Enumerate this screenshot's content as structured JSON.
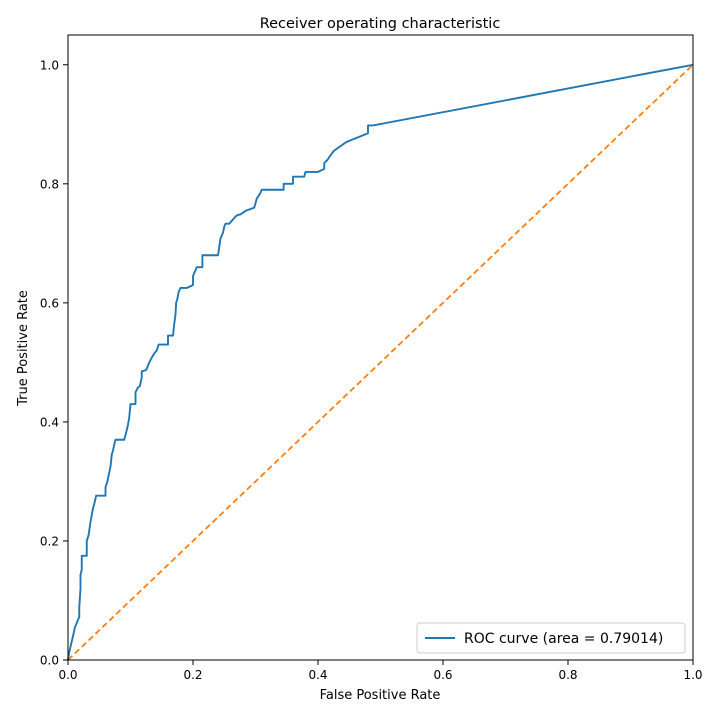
{
  "chart_data": {
    "type": "line",
    "title": "Receiver operating characteristic",
    "xlabel": "False Positive Rate",
    "ylabel": "True Positive Rate",
    "xlim": [
      0.0,
      1.0
    ],
    "ylim": [
      0.0,
      1.05
    ],
    "x_ticks": [
      0.0,
      0.2,
      0.4,
      0.6,
      0.8,
      1.0
    ],
    "y_ticks": [
      0.0,
      0.2,
      0.4,
      0.6,
      0.8,
      1.0
    ],
    "x_tick_labels": [
      "0.0",
      "0.2",
      "0.4",
      "0.6",
      "0.8",
      "1.0"
    ],
    "y_tick_labels": [
      "0.0",
      "0.2",
      "0.4",
      "0.6",
      "0.8",
      "1.0"
    ],
    "grid": false,
    "legend_position": "lower-right",
    "series": [
      {
        "name": "ROC curve (area = 0.79014)",
        "color": "#1f77b4",
        "style": "solid",
        "x": [
          0.0,
          0.002,
          0.005,
          0.008,
          0.011,
          0.014,
          0.016,
          0.018,
          0.018,
          0.02,
          0.02,
          0.022,
          0.022,
          0.03,
          0.03,
          0.033,
          0.036,
          0.04,
          0.042,
          0.045,
          0.047,
          0.05,
          0.06,
          0.06,
          0.063,
          0.065,
          0.068,
          0.07,
          0.072,
          0.074,
          0.076,
          0.076,
          0.09,
          0.093,
          0.096,
          0.098,
          0.1,
          0.1,
          0.108,
          0.108,
          0.112,
          0.115,
          0.118,
          0.118,
          0.125,
          0.13,
          0.134,
          0.138,
          0.142,
          0.145,
          0.145,
          0.16,
          0.16,
          0.168,
          0.17,
          0.172,
          0.173,
          0.175,
          0.177,
          0.18,
          0.19,
          0.2,
          0.2,
          0.206,
          0.208,
          0.215,
          0.215,
          0.24,
          0.244,
          0.248,
          0.25,
          0.252,
          0.255,
          0.258,
          0.268,
          0.272,
          0.275,
          0.285,
          0.285,
          0.298,
          0.302,
          0.305,
          0.308,
          0.31,
          0.345,
          0.345,
          0.36,
          0.36,
          0.378,
          0.38,
          0.385,
          0.4,
          0.41,
          0.41,
          0.415,
          0.418,
          0.425,
          0.445,
          0.48,
          0.48,
          0.488,
          1.0
        ],
        "y": [
          0.0,
          0.013,
          0.027,
          0.04,
          0.055,
          0.062,
          0.068,
          0.072,
          0.088,
          0.12,
          0.143,
          0.152,
          0.175,
          0.175,
          0.2,
          0.21,
          0.232,
          0.255,
          0.262,
          0.276,
          0.276,
          0.276,
          0.276,
          0.29,
          0.3,
          0.31,
          0.325,
          0.345,
          0.352,
          0.362,
          0.37,
          0.37,
          0.37,
          0.382,
          0.395,
          0.408,
          0.43,
          0.43,
          0.43,
          0.45,
          0.458,
          0.46,
          0.475,
          0.485,
          0.487,
          0.5,
          0.508,
          0.515,
          0.52,
          0.53,
          0.53,
          0.53,
          0.545,
          0.545,
          0.565,
          0.58,
          0.6,
          0.607,
          0.618,
          0.625,
          0.625,
          0.63,
          0.645,
          0.66,
          0.66,
          0.66,
          0.68,
          0.68,
          0.708,
          0.718,
          0.728,
          0.733,
          0.733,
          0.733,
          0.745,
          0.748,
          0.748,
          0.755,
          0.755,
          0.76,
          0.775,
          0.78,
          0.785,
          0.79,
          0.79,
          0.8,
          0.8,
          0.812,
          0.812,
          0.82,
          0.82,
          0.82,
          0.825,
          0.835,
          0.84,
          0.845,
          0.855,
          0.87,
          0.885,
          0.898,
          0.898,
          1.0
        ]
      },
      {
        "color": "#ff7f0e",
        "style": "dashed",
        "x": [
          0.0,
          1.0
        ],
        "y": [
          0.0,
          1.0
        ]
      }
    ]
  }
}
